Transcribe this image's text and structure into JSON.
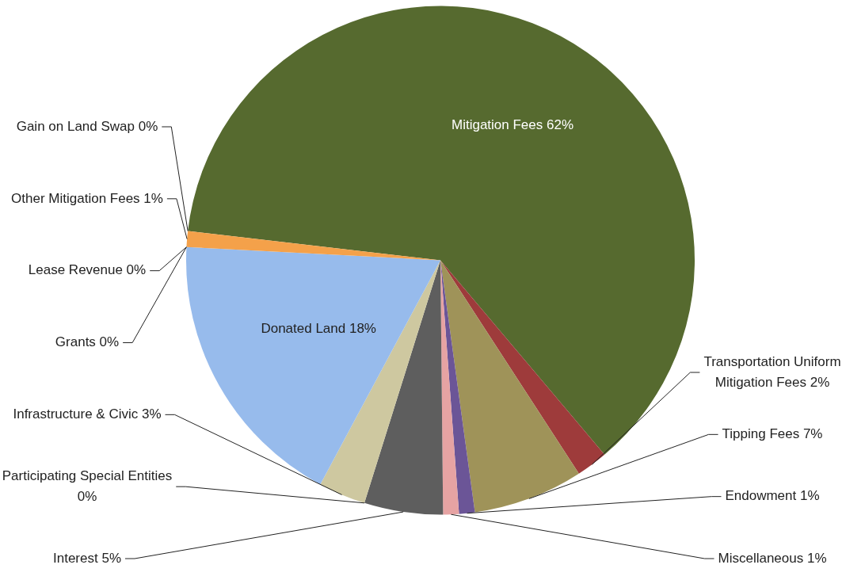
{
  "chart_data": {
    "type": "pie",
    "categories": [
      "Mitigation Fees",
      "Transportation Uniform Mitigation Fees",
      "Tipping Fees",
      "Endowment",
      "Miscellaneous",
      "Interest",
      "Participating Special Entities",
      "Infrastructure & Civic",
      "Donated Land",
      "Grants",
      "Lease Revenue",
      "Other Mitigation Fees",
      "Gain on Land Swap"
    ],
    "values": [
      62,
      2,
      7,
      1,
      1,
      5,
      0,
      3,
      18,
      0,
      0,
      1,
      0
    ],
    "colors": [
      "#566a2f",
      "#9e3b3b",
      "#9f9359",
      "#6b5597",
      "#e6a3a3",
      "#5e5e5e",
      "#5b3ff5",
      "#cec8a0",
      "#97bbec",
      "#e6e83a",
      "#5ac8f0",
      "#f4a14a",
      "#e8b4b4"
    ],
    "value_labels": [
      "62%",
      "2%",
      "7%",
      "1%",
      "1%",
      "5%",
      "0%",
      "3%",
      "18%",
      "0%",
      "0%",
      "1%",
      "0%"
    ]
  }
}
